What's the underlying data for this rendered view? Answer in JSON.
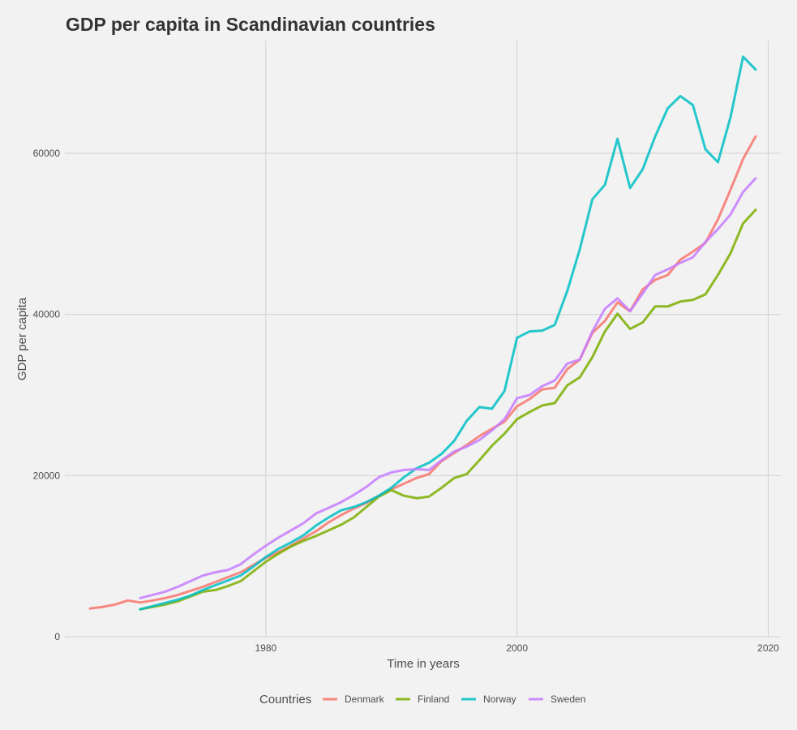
{
  "chart_data": {
    "type": "line",
    "title": "GDP per capita in Scandinavian countries",
    "xlabel": "Time in years",
    "ylabel": "GDP per capita",
    "xlim": [
      1964,
      2021
    ],
    "ylim": [
      0,
      74000
    ],
    "x_ticks": [
      1980,
      2000,
      2020
    ],
    "x_tick_labels": [
      "1980",
      "2000",
      "2020"
    ],
    "y_ticks": [
      0,
      20000,
      40000,
      60000
    ],
    "y_tick_labels": [
      "0",
      "20000",
      "40000",
      "60000"
    ],
    "grid": true,
    "legend": {
      "title": "Countries",
      "position": "bottom"
    },
    "series": [
      {
        "name": "Denmark",
        "color": "#F8766D",
        "x": [
          1966,
          1967,
          1968,
          1969,
          1970,
          1971,
          1972,
          1973,
          1974,
          1975,
          1976,
          1977,
          1978,
          1979,
          1980,
          1981,
          1982,
          1983,
          1984,
          1985,
          1986,
          1987,
          1988,
          1989,
          1990,
          1991,
          1992,
          1993,
          1994,
          1995,
          1996,
          1997,
          1998,
          1999,
          2000,
          2001,
          2002,
          2003,
          2004,
          2005,
          2006,
          2007,
          2008,
          2009,
          2010,
          2011,
          2012,
          2013,
          2014,
          2015,
          2016,
          2017,
          2018,
          2019
        ],
        "y": [
          3500,
          3700,
          4000,
          4500,
          4250,
          4500,
          4800,
          5200,
          5700,
          6200,
          6800,
          7400,
          8000,
          8900,
          9800,
          10500,
          11300,
          12200,
          13100,
          14200,
          15100,
          15900,
          16600,
          17500,
          18300,
          19000,
          19700,
          20200,
          21800,
          22800,
          23800,
          24900,
          25800,
          26700,
          28600,
          29500,
          30700,
          30900,
          33200,
          34400,
          37700,
          39200,
          41500,
          40400,
          43100,
          44300,
          44900,
          46800,
          47800,
          48900,
          51800,
          55500,
          59300,
          62100
        ]
      },
      {
        "name": "Finland",
        "color": "#7CAE00",
        "x": [
          1970,
          1971,
          1972,
          1973,
          1974,
          1975,
          1976,
          1977,
          1978,
          1979,
          1980,
          1981,
          1982,
          1983,
          1984,
          1985,
          1986,
          1987,
          1988,
          1989,
          1990,
          1991,
          1992,
          1993,
          1994,
          1995,
          1996,
          1997,
          1998,
          1999,
          2000,
          2001,
          2002,
          2003,
          2004,
          2005,
          2006,
          2007,
          2008,
          2009,
          2010,
          2011,
          2012,
          2013,
          2014,
          2015,
          2016,
          2017,
          2018,
          2019
        ],
        "y": [
          3400,
          3700,
          4000,
          4400,
          5000,
          5600,
          5800,
          6300,
          6900,
          8100,
          9300,
          10300,
          11200,
          11900,
          12500,
          13200,
          13900,
          14800,
          16100,
          17400,
          18200,
          17500,
          17200,
          17400,
          18500,
          19700,
          20200,
          21900,
          23700,
          25200,
          27000,
          27900,
          28700,
          29000,
          31200,
          32200,
          34700,
          37900,
          40100,
          38200,
          39000,
          41000,
          41000,
          41600,
          41800,
          42500,
          44900,
          47600,
          51300,
          53000
        ]
      },
      {
        "name": "Norway",
        "color": "#00BFC4",
        "x": [
          1970,
          1971,
          1972,
          1973,
          1974,
          1975,
          1976,
          1977,
          1978,
          1979,
          1980,
          1981,
          1982,
          1983,
          1984,
          1985,
          1986,
          1987,
          1988,
          1989,
          1990,
          1991,
          1992,
          1993,
          1994,
          1995,
          1996,
          1997,
          1998,
          1999,
          2000,
          2001,
          2002,
          2003,
          2004,
          2005,
          2006,
          2007,
          2008,
          2009,
          2010,
          2011,
          2012,
          2013,
          2014,
          2015,
          2016,
          2017,
          2018,
          2019
        ],
        "y": [
          3400,
          3800,
          4200,
          4600,
          5100,
          5800,
          6400,
          7000,
          7600,
          8700,
          9900,
          10900,
          11700,
          12600,
          13800,
          14800,
          15700,
          16100,
          16700,
          17500,
          18500,
          19800,
          20900,
          21600,
          22700,
          24300,
          26800,
          28500,
          28300,
          30500,
          37100,
          37900,
          38000,
          38700,
          42900,
          48100,
          54300,
          56100,
          61800,
          55700,
          58000,
          62100,
          65600,
          67100,
          66000,
          60500,
          58900,
          64500,
          72000,
          70400
        ]
      },
      {
        "name": "Sweden",
        "color": "#C77CFF",
        "x": [
          1970,
          1971,
          1972,
          1973,
          1974,
          1975,
          1976,
          1977,
          1978,
          1979,
          1980,
          1981,
          1982,
          1983,
          1984,
          1985,
          1986,
          1987,
          1988,
          1989,
          1990,
          1991,
          1992,
          1993,
          1994,
          1995,
          1996,
          1997,
          1998,
          1999,
          2000,
          2001,
          2002,
          2003,
          2004,
          2005,
          2006,
          2007,
          2008,
          2009,
          2010,
          2011,
          2012,
          2013,
          2014,
          2015,
          2016,
          2017,
          2018,
          2019
        ],
        "y": [
          4800,
          5200,
          5600,
          6200,
          6900,
          7600,
          8000,
          8300,
          9000,
          10200,
          11300,
          12300,
          13200,
          14100,
          15300,
          16000,
          16700,
          17600,
          18600,
          19800,
          20400,
          20700,
          20800,
          20700,
          21900,
          23000,
          23600,
          24400,
          25600,
          27000,
          29600,
          30000,
          31100,
          31800,
          33900,
          34400,
          37900,
          40700,
          42000,
          40400,
          42600,
          44900,
          45600,
          46400,
          47100,
          49000,
          50600,
          52400,
          55200,
          56900
        ]
      }
    ]
  }
}
